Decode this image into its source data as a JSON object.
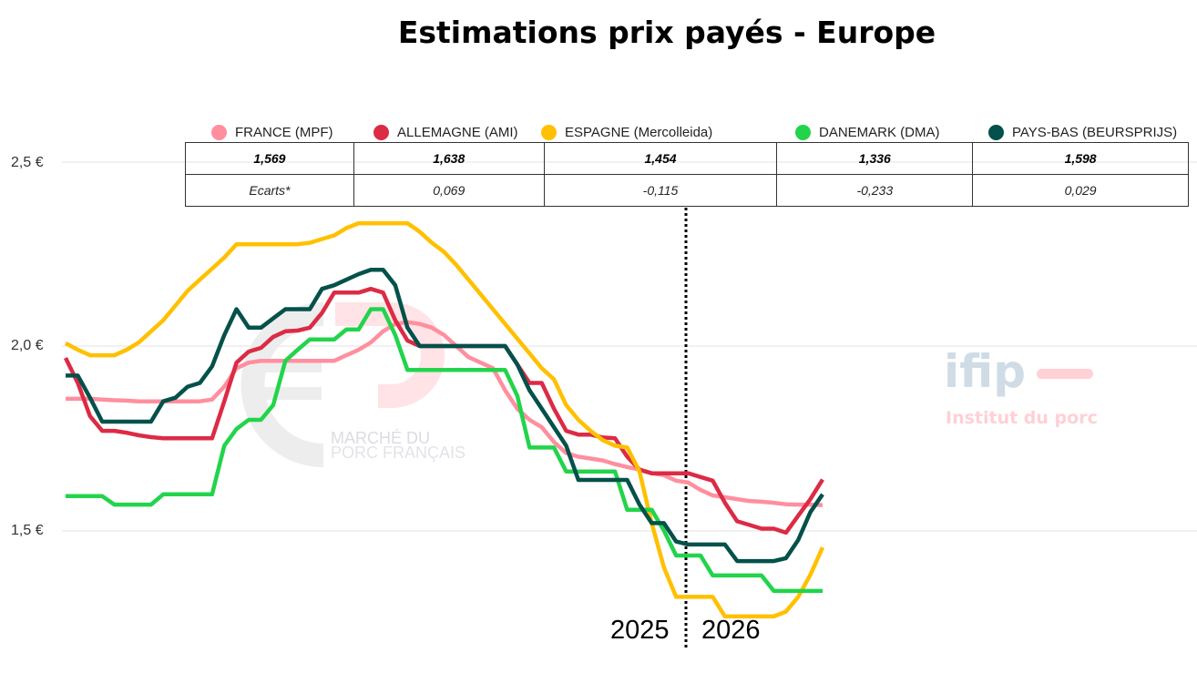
{
  "chart_data": {
    "type": "line",
    "title": "Estimations prix payés - Europe",
    "xlabel": "",
    "ylabel": "",
    "ylim": [
      1.2,
      2.5
    ],
    "yticks": [
      "1,5 €",
      "2,0 €",
      "2,5 €"
    ],
    "ytick_values": [
      1.5,
      2.0,
      2.5
    ],
    "grid": true,
    "legend": "top",
    "year_labels": [
      "2025",
      "2026"
    ],
    "year_divider_index": 51,
    "series": [
      {
        "name": "FRANCE (MPF)",
        "color": "#FF8F9E",
        "values": [
          1.857,
          1.857,
          1.857,
          1.855,
          1.853,
          1.852,
          1.85,
          1.85,
          1.85,
          1.85,
          1.85,
          1.85,
          1.855,
          1.89,
          1.94,
          1.955,
          1.96,
          1.96,
          1.96,
          1.96,
          1.96,
          1.96,
          1.96,
          1.975,
          1.99,
          2.01,
          2.04,
          2.06,
          2.065,
          2.06,
          2.05,
          2.03,
          2.0,
          1.97,
          1.955,
          1.94,
          1.88,
          1.83,
          1.8,
          1.78,
          1.74,
          1.71,
          1.7,
          1.695,
          1.69,
          1.68,
          1.672,
          1.665,
          1.655,
          1.65,
          1.635,
          1.63,
          1.61,
          1.595,
          1.59,
          1.585,
          1.58,
          1.578,
          1.575,
          1.571,
          1.57,
          1.57,
          1.569
        ]
      },
      {
        "name": "ALLEMAGNE (AMI)",
        "color": "#DC2B45",
        "values": [
          1.968,
          1.9,
          1.81,
          1.77,
          1.77,
          1.765,
          1.758,
          1.753,
          1.75,
          1.75,
          1.75,
          1.75,
          1.75,
          1.85,
          1.955,
          1.985,
          1.995,
          2.025,
          2.04,
          2.042,
          2.05,
          2.09,
          2.145,
          2.145,
          2.145,
          2.155,
          2.145,
          2.07,
          2.015,
          2.0,
          2.0,
          2.0,
          2.0,
          2.0,
          2.0,
          2.0,
          2.0,
          1.95,
          1.9,
          1.9,
          1.83,
          1.77,
          1.76,
          1.76,
          1.752,
          1.75,
          1.7,
          1.665,
          1.655,
          1.655,
          1.655,
          1.655,
          1.645,
          1.635,
          1.575,
          1.525,
          1.515,
          1.505,
          1.505,
          1.494,
          1.54,
          1.585,
          1.638
        ]
      },
      {
        "name": "ESPAGNE (Mercolleida)",
        "color": "#FFC000",
        "values": [
          2.008,
          1.99,
          1.975,
          1.975,
          1.975,
          1.99,
          2.01,
          2.04,
          2.07,
          2.11,
          2.15,
          2.18,
          2.21,
          2.24,
          2.276,
          2.276,
          2.276,
          2.276,
          2.276,
          2.276,
          2.28,
          2.29,
          2.3,
          2.32,
          2.333,
          2.333,
          2.333,
          2.333,
          2.333,
          2.31,
          2.28,
          2.255,
          2.22,
          2.18,
          2.14,
          2.1,
          2.06,
          2.02,
          1.98,
          1.94,
          1.91,
          1.84,
          1.8,
          1.77,
          1.745,
          1.73,
          1.725,
          1.66,
          1.52,
          1.4,
          1.32,
          1.32,
          1.32,
          1.32,
          1.267,
          1.267,
          1.267,
          1.267,
          1.267,
          1.28,
          1.32,
          1.38,
          1.454
        ]
      },
      {
        "name": "DANEMARK (DMA)",
        "color": "#22D44B",
        "values": [
          1.593,
          1.593,
          1.593,
          1.593,
          1.57,
          1.57,
          1.57,
          1.57,
          1.598,
          1.598,
          1.598,
          1.598,
          1.598,
          1.73,
          1.775,
          1.8,
          1.8,
          1.84,
          1.96,
          1.99,
          2.018,
          2.018,
          2.018,
          2.045,
          2.045,
          2.1,
          2.1,
          2.03,
          1.935,
          1.935,
          1.935,
          1.935,
          1.935,
          1.935,
          1.935,
          1.935,
          1.935,
          1.865,
          1.725,
          1.725,
          1.725,
          1.66,
          1.66,
          1.66,
          1.66,
          1.66,
          1.556,
          1.556,
          1.556,
          1.5,
          1.432,
          1.432,
          1.432,
          1.378,
          1.378,
          1.378,
          1.378,
          1.378,
          1.336,
          1.336,
          1.336,
          1.336,
          1.336
        ]
      },
      {
        "name": "PAYS-BAS (BEURSPRIJS)",
        "color": "#03514A",
        "values": [
          1.92,
          1.92,
          1.86,
          1.795,
          1.795,
          1.795,
          1.795,
          1.795,
          1.85,
          1.86,
          1.89,
          1.9,
          1.945,
          2.03,
          2.1,
          2.05,
          2.05,
          2.075,
          2.1,
          2.1,
          2.1,
          2.155,
          2.165,
          2.18,
          2.195,
          2.207,
          2.207,
          2.165,
          2.05,
          2.0,
          2.0,
          2.0,
          2.0,
          2.0,
          2.0,
          2.0,
          2.0,
          1.95,
          1.88,
          1.83,
          1.78,
          1.73,
          1.637,
          1.637,
          1.637,
          1.637,
          1.637,
          1.57,
          1.52,
          1.52,
          1.47,
          1.462,
          1.462,
          1.462,
          1.462,
          1.417,
          1.417,
          1.417,
          1.417,
          1.425,
          1.474,
          1.55,
          1.598
        ]
      }
    ],
    "table": {
      "values": [
        "1,569",
        "1,638",
        "1,454",
        "1,336",
        "1,598"
      ],
      "ecarts_label": "Ecarts*",
      "ecarts": [
        "",
        "0,069",
        "-0,115",
        "-0,233",
        "0,029"
      ]
    }
  },
  "watermarks": {
    "mpf": [
      "MARCHÉ DU",
      "PORC FRANÇAIS"
    ],
    "ifip": [
      "ifip",
      "Institut du porc"
    ]
  }
}
